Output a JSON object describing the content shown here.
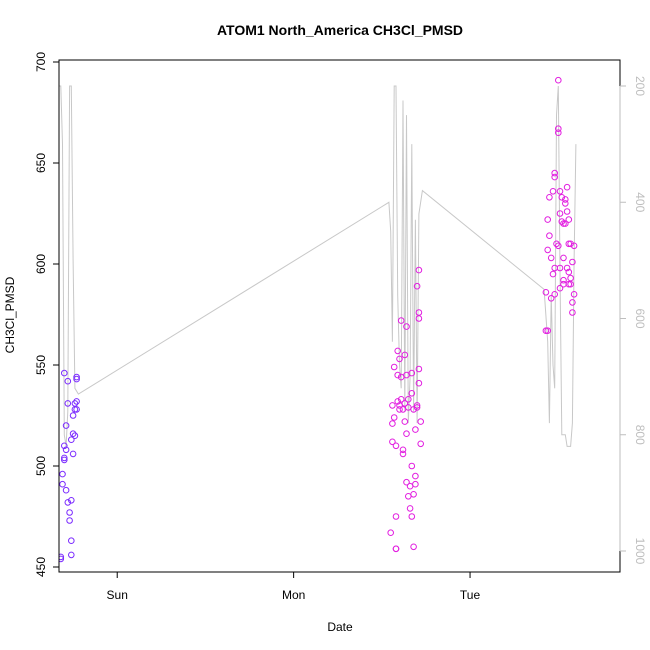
{
  "chart_data": {
    "type": "scatter",
    "title": "ATOM1 North_America CH3Cl_PMSD",
    "xlabel": "Date",
    "ylabel": "CH3Cl_PMSD",
    "x_ticks": [
      "Sun",
      "Mon",
      "Tue"
    ],
    "y_ticks": [
      450,
      500,
      550,
      600,
      650,
      700
    ],
    "ylim": [
      450,
      700
    ],
    "right_axis": {
      "label": "",
      "reversed": true,
      "ticks": [
        200,
        400,
        600,
        800,
        1000
      ],
      "ylim": [
        1000,
        200
      ],
      "color": "#bebebe"
    },
    "grid": false,
    "legend": "none",
    "colors": {
      "early": "#7b2bff",
      "late": "#e21ee0",
      "line": "#c8c8c8"
    },
    "x_unit": "days (Sun 00:00 = 0)",
    "xlim": [
      -0.33,
      2.85
    ],
    "series": [
      {
        "kind": "points",
        "values": [
          {
            "x": -0.32,
            "y": 455
          },
          {
            "x": -0.32,
            "y": 454
          },
          {
            "x": -0.31,
            "y": 491
          },
          {
            "x": -0.31,
            "y": 496
          },
          {
            "x": -0.3,
            "y": 504
          },
          {
            "x": -0.3,
            "y": 503
          },
          {
            "x": -0.29,
            "y": 508
          },
          {
            "x": -0.3,
            "y": 510
          },
          {
            "x": -0.3,
            "y": 546
          },
          {
            "x": -0.28,
            "y": 542
          },
          {
            "x": -0.29,
            "y": 520
          },
          {
            "x": -0.28,
            "y": 531
          },
          {
            "x": -0.29,
            "y": 488
          },
          {
            "x": -0.28,
            "y": 482
          },
          {
            "x": -0.27,
            "y": 477
          },
          {
            "x": -0.27,
            "y": 473
          },
          {
            "x": -0.26,
            "y": 463
          },
          {
            "x": -0.26,
            "y": 456
          },
          {
            "x": -0.26,
            "y": 483
          },
          {
            "x": -0.26,
            "y": 513
          },
          {
            "x": -0.25,
            "y": 516
          },
          {
            "x": -0.25,
            "y": 506
          },
          {
            "x": -0.25,
            "y": 525
          },
          {
            "x": -0.24,
            "y": 528
          },
          {
            "x": -0.24,
            "y": 531
          },
          {
            "x": -0.23,
            "y": 544
          },
          {
            "x": -0.23,
            "y": 543
          },
          {
            "x": -0.24,
            "y": 515
          },
          {
            "x": -0.23,
            "y": 532
          },
          {
            "x": -0.23,
            "y": 528
          },
          {
            "x": 1.55,
            "y": 467
          },
          {
            "x": 1.56,
            "y": 512
          },
          {
            "x": 1.56,
            "y": 530
          },
          {
            "x": 1.56,
            "y": 521
          },
          {
            "x": 1.57,
            "y": 524
          },
          {
            "x": 1.57,
            "y": 549
          },
          {
            "x": 1.58,
            "y": 510
          },
          {
            "x": 1.58,
            "y": 475
          },
          {
            "x": 1.58,
            "y": 459
          },
          {
            "x": 1.58,
            "y": 459
          },
          {
            "x": 1.59,
            "y": 532
          },
          {
            "x": 1.59,
            "y": 557
          },
          {
            "x": 1.59,
            "y": 545
          },
          {
            "x": 1.6,
            "y": 553
          },
          {
            "x": 1.6,
            "y": 530
          },
          {
            "x": 1.6,
            "y": 528
          },
          {
            "x": 1.61,
            "y": 572
          },
          {
            "x": 1.61,
            "y": 544
          },
          {
            "x": 1.61,
            "y": 533
          },
          {
            "x": 1.62,
            "y": 528
          },
          {
            "x": 1.62,
            "y": 508
          },
          {
            "x": 1.62,
            "y": 506
          },
          {
            "x": 1.63,
            "y": 555
          },
          {
            "x": 1.63,
            "y": 531
          },
          {
            "x": 1.63,
            "y": 522
          },
          {
            "x": 1.64,
            "y": 569
          },
          {
            "x": 1.64,
            "y": 545
          },
          {
            "x": 1.64,
            "y": 492
          },
          {
            "x": 1.64,
            "y": 516
          },
          {
            "x": 1.65,
            "y": 485
          },
          {
            "x": 1.65,
            "y": 533
          },
          {
            "x": 1.65,
            "y": 529
          },
          {
            "x": 1.66,
            "y": 479
          },
          {
            "x": 1.66,
            "y": 490
          },
          {
            "x": 1.67,
            "y": 546
          },
          {
            "x": 1.67,
            "y": 536
          },
          {
            "x": 1.67,
            "y": 500
          },
          {
            "x": 1.67,
            "y": 475
          },
          {
            "x": 1.68,
            "y": 486
          },
          {
            "x": 1.68,
            "y": 460
          },
          {
            "x": 1.68,
            "y": 528
          },
          {
            "x": 1.69,
            "y": 518
          },
          {
            "x": 1.69,
            "y": 491
          },
          {
            "x": 1.69,
            "y": 495
          },
          {
            "x": 1.7,
            "y": 589
          },
          {
            "x": 1.7,
            "y": 530
          },
          {
            "x": 1.7,
            "y": 529
          },
          {
            "x": 1.71,
            "y": 548
          },
          {
            "x": 1.71,
            "y": 541
          },
          {
            "x": 1.71,
            "y": 576
          },
          {
            "x": 1.71,
            "y": 573
          },
          {
            "x": 1.71,
            "y": 597
          },
          {
            "x": 1.72,
            "y": 522
          },
          {
            "x": 1.72,
            "y": 511
          },
          {
            "x": 2.43,
            "y": 567
          },
          {
            "x": 2.43,
            "y": 586
          },
          {
            "x": 2.44,
            "y": 567
          },
          {
            "x": 2.44,
            "y": 607
          },
          {
            "x": 2.44,
            "y": 622
          },
          {
            "x": 2.45,
            "y": 633
          },
          {
            "x": 2.45,
            "y": 614
          },
          {
            "x": 2.46,
            "y": 583
          },
          {
            "x": 2.46,
            "y": 603
          },
          {
            "x": 2.47,
            "y": 595
          },
          {
            "x": 2.47,
            "y": 636
          },
          {
            "x": 2.48,
            "y": 645
          },
          {
            "x": 2.48,
            "y": 643
          },
          {
            "x": 2.48,
            "y": 585
          },
          {
            "x": 2.48,
            "y": 598
          },
          {
            "x": 2.49,
            "y": 610
          },
          {
            "x": 2.5,
            "y": 691
          },
          {
            "x": 2.5,
            "y": 665
          },
          {
            "x": 2.5,
            "y": 667
          },
          {
            "x": 2.5,
            "y": 609
          },
          {
            "x": 2.51,
            "y": 598
          },
          {
            "x": 2.51,
            "y": 588
          },
          {
            "x": 2.51,
            "y": 625
          },
          {
            "x": 2.51,
            "y": 636
          },
          {
            "x": 2.52,
            "y": 633
          },
          {
            "x": 2.52,
            "y": 621
          },
          {
            "x": 2.53,
            "y": 603
          },
          {
            "x": 2.53,
            "y": 590
          },
          {
            "x": 2.53,
            "y": 592
          },
          {
            "x": 2.53,
            "y": 620
          },
          {
            "x": 2.54,
            "y": 620
          },
          {
            "x": 2.54,
            "y": 632
          },
          {
            "x": 2.54,
            "y": 630
          },
          {
            "x": 2.55,
            "y": 638
          },
          {
            "x": 2.55,
            "y": 626
          },
          {
            "x": 2.55,
            "y": 598
          },
          {
            "x": 2.56,
            "y": 622
          },
          {
            "x": 2.56,
            "y": 610
          },
          {
            "x": 2.56,
            "y": 596
          },
          {
            "x": 2.56,
            "y": 590
          },
          {
            "x": 2.57,
            "y": 590
          },
          {
            "x": 2.57,
            "y": 593
          },
          {
            "x": 2.57,
            "y": 610
          },
          {
            "x": 2.58,
            "y": 601
          },
          {
            "x": 2.58,
            "y": 581
          },
          {
            "x": 2.58,
            "y": 576
          },
          {
            "x": 2.59,
            "y": 609
          },
          {
            "x": 2.59,
            "y": 585
          }
        ]
      },
      {
        "kind": "line",
        "axis": "right",
        "values": [
          {
            "x": -0.33,
            "y": 200
          },
          {
            "x": -0.32,
            "y": 200
          },
          {
            "x": -0.31,
            "y": 300
          },
          {
            "x": -0.3,
            "y": 800
          },
          {
            "x": -0.29,
            "y": 820
          },
          {
            "x": -0.28,
            "y": 760
          },
          {
            "x": -0.27,
            "y": 200
          },
          {
            "x": -0.26,
            "y": 200
          },
          {
            "x": -0.25,
            "y": 500
          },
          {
            "x": -0.24,
            "y": 720
          },
          {
            "x": -0.22,
            "y": 730
          },
          {
            "x": 1.54,
            "y": 400
          },
          {
            "x": 1.55,
            "y": 450
          },
          {
            "x": 1.56,
            "y": 640
          },
          {
            "x": 1.57,
            "y": 200
          },
          {
            "x": 1.58,
            "y": 200
          },
          {
            "x": 1.59,
            "y": 560
          },
          {
            "x": 1.6,
            "y": 680
          },
          {
            "x": 1.61,
            "y": 720
          },
          {
            "x": 1.62,
            "y": 225
          },
          {
            "x": 1.63,
            "y": 760
          },
          {
            "x": 1.64,
            "y": 250
          },
          {
            "x": 1.65,
            "y": 780
          },
          {
            "x": 1.66,
            "y": 700
          },
          {
            "x": 1.67,
            "y": 300
          },
          {
            "x": 1.68,
            "y": 760
          },
          {
            "x": 1.69,
            "y": 430
          },
          {
            "x": 1.7,
            "y": 780
          },
          {
            "x": 1.71,
            "y": 420
          },
          {
            "x": 1.73,
            "y": 380
          },
          {
            "x": 2.42,
            "y": 550
          },
          {
            "x": 2.44,
            "y": 640
          },
          {
            "x": 2.45,
            "y": 780
          },
          {
            "x": 2.46,
            "y": 560
          },
          {
            "x": 2.47,
            "y": 680
          },
          {
            "x": 2.48,
            "y": 720
          },
          {
            "x": 2.49,
            "y": 250
          },
          {
            "x": 2.5,
            "y": 200
          },
          {
            "x": 2.51,
            "y": 520
          },
          {
            "x": 2.52,
            "y": 800
          },
          {
            "x": 2.54,
            "y": 800
          },
          {
            "x": 2.55,
            "y": 820
          },
          {
            "x": 2.57,
            "y": 820
          },
          {
            "x": 2.58,
            "y": 780
          },
          {
            "x": 2.59,
            "y": 500
          },
          {
            "x": 2.6,
            "y": 300
          }
        ]
      }
    ]
  }
}
